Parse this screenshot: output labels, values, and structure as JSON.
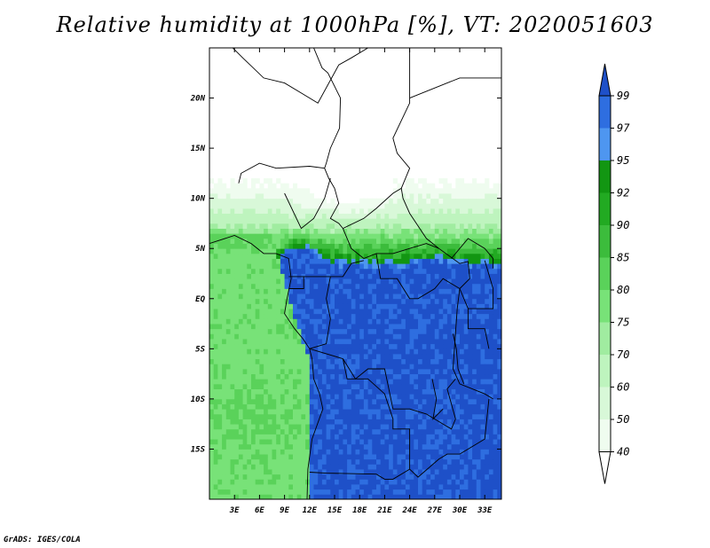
{
  "title": "Relative humidity at 1000hPa [%], VT: 2020051603",
  "credit": "GrADS: IGES/COLA",
  "chart_data": {
    "type": "heatmap",
    "title": "Relative humidity at 1000hPa [%], VT: 2020051603",
    "xlabel": "",
    "ylabel": "",
    "xlim": [
      0,
      35
    ],
    "ylim": [
      -20,
      25
    ],
    "x_ticks": [
      "3E",
      "6E",
      "9E",
      "12E",
      "15E",
      "18E",
      "21E",
      "24E",
      "27E",
      "30E",
      "33E"
    ],
    "x_tick_values": [
      3,
      6,
      9,
      12,
      15,
      18,
      21,
      24,
      27,
      30,
      33
    ],
    "y_ticks": [
      "20N",
      "15N",
      "10N",
      "5N",
      "EQ",
      "5S",
      "10S",
      "15S"
    ],
    "y_tick_values": [
      20,
      15,
      10,
      5,
      0,
      -5,
      -10,
      -15
    ],
    "colorbar": {
      "levels": [
        "99",
        "97",
        "95",
        "92",
        "90",
        "85",
        "80",
        "75",
        "70",
        "60",
        "50",
        "40"
      ],
      "colors": [
        "#1e50c8",
        "#2e6ee0",
        "#4e96f0",
        "#129612",
        "#22aa22",
        "#3cbc3c",
        "#5ad25a",
        "#78e278",
        "#a0eca0",
        "#bef4be",
        "#d8f8d8",
        "#effcef"
      ],
      "top_color": "#1e50c8",
      "bottom_color": "#ffffff"
    }
  }
}
